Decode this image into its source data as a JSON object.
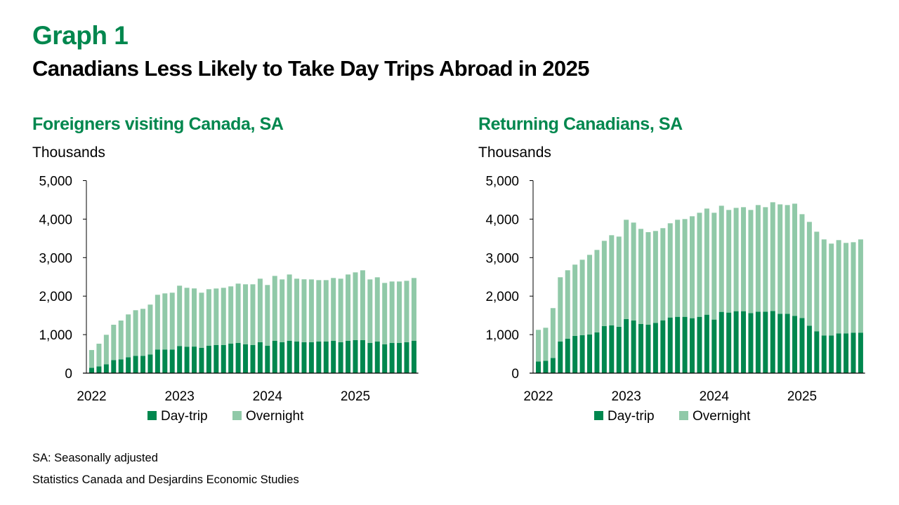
{
  "header": {
    "graph_label": "Graph 1",
    "title": "Canadians Less Likely to Take Day Trips Abroad in 2025"
  },
  "footer": {
    "note": "SA: Seasonally adjusted",
    "source": "Statistics Canada and Desjardins Economic Studies"
  },
  "colors": {
    "day_trip": "#00874E",
    "overnight": "#90C9A8",
    "title_green": "#00874E"
  },
  "chart_data": [
    {
      "type": "bar",
      "stacked": true,
      "title": "Foreigners visiting Canada, SA",
      "ylabel": "Thousands",
      "ylim": [
        0,
        5000
      ],
      "yticks": [
        0,
        1000,
        2000,
        3000,
        4000,
        5000
      ],
      "ytick_labels": [
        "0",
        "1,000",
        "2,000",
        "3,000",
        "4,000",
        "5,000"
      ],
      "x_start": "2022-01",
      "x_end": "2025-09",
      "xtick_labels": [
        "2022",
        "2023",
        "2024",
        "2025"
      ],
      "legend": [
        "Day-trip",
        "Overnight"
      ],
      "legend_position": "bottom",
      "grid": false,
      "series": [
        {
          "name": "Day-trip",
          "values": [
            140,
            177,
            231,
            340,
            359,
            413,
            450,
            450,
            486,
            614,
            614,
            614,
            705,
            687,
            690,
            656,
            710,
            729,
            729,
            765,
            783,
            747,
            729,
            802,
            710,
            838,
            802,
            838,
            820,
            805,
            802,
            820,
            820,
            838,
            802,
            838,
            856,
            856,
            783,
            820,
            747,
            783,
            783,
            802,
            838
          ]
        },
        {
          "name": "Overnight",
          "values": [
            460,
            588,
            765,
            917,
            1007,
            1112,
            1184,
            1220,
            1294,
            1421,
            1457,
            1475,
            1566,
            1529,
            1510,
            1433,
            1470,
            1469,
            1487,
            1488,
            1542,
            1560,
            1578,
            1651,
            1579,
            1687,
            1632,
            1724,
            1633,
            1632,
            1632,
            1596,
            1596,
            1633,
            1651,
            1724,
            1761,
            1815,
            1651,
            1669,
            1596,
            1597,
            1597,
            1596,
            1633
          ]
        }
      ]
    },
    {
      "type": "bar",
      "stacked": true,
      "title": "Returning Canadians, SA",
      "ylabel": "Thousands",
      "ylim": [
        0,
        5000
      ],
      "yticks": [
        0,
        1000,
        2000,
        3000,
        4000,
        5000
      ],
      "ytick_labels": [
        "0",
        "1,000",
        "2,000",
        "3,000",
        "4,000",
        "5,000"
      ],
      "x_start": "2022-01",
      "x_end": "2025-09",
      "xtick_labels": [
        "2022",
        "2023",
        "2024",
        "2025"
      ],
      "legend": [
        "Day-trip",
        "Overnight"
      ],
      "legend_position": "bottom",
      "grid": false,
      "series": [
        {
          "name": "Day-trip",
          "values": [
            304,
            322,
            395,
            820,
            893,
            966,
            984,
            1002,
            1057,
            1221,
            1239,
            1203,
            1403,
            1366,
            1275,
            1257,
            1306,
            1372,
            1445,
            1463,
            1463,
            1427,
            1463,
            1518,
            1391,
            1591,
            1573,
            1609,
            1609,
            1560,
            1597,
            1597,
            1615,
            1542,
            1542,
            1488,
            1433,
            1233,
            1088,
            979,
            979,
            1033,
            1033,
            1052,
            1052
          ]
        },
        {
          "name": "Overnight",
          "values": [
            820,
            857,
            1294,
            1670,
            1779,
            1852,
            1961,
            2070,
            2143,
            2215,
            2343,
            2343,
            2580,
            2544,
            2471,
            2404,
            2386,
            2393,
            2447,
            2520,
            2538,
            2647,
            2702,
            2756,
            2774,
            2756,
            2665,
            2683,
            2701,
            2678,
            2768,
            2713,
            2823,
            2841,
            2823,
            2913,
            2695,
            2695,
            2585,
            2494,
            2385,
            2422,
            2349,
            2348,
            2421
          ]
        }
      ]
    }
  ]
}
